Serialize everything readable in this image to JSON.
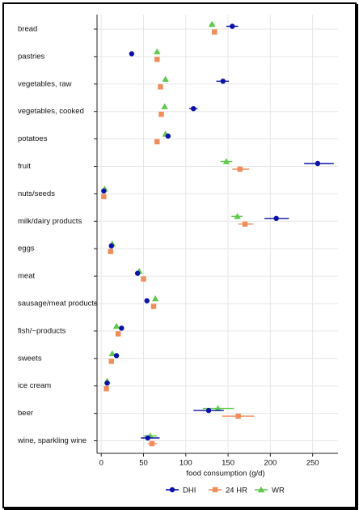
{
  "chart_data": {
    "type": "scatter",
    "orientation": "horizontal",
    "xlabel": "food consumption (g/d)",
    "xlim": [
      -5,
      280
    ],
    "xticks": [
      0,
      50,
      100,
      150,
      200,
      250
    ],
    "grid": true,
    "legend": "bottom",
    "categories": [
      "bread",
      "pastries",
      "vegetables, raw",
      "vegetables, cooked",
      "potatoes",
      "fruit",
      "nuts/seeds",
      "milk/dairy products",
      "eggs",
      "meat",
      "sausage/meat products",
      "fish/~products",
      "sweets",
      "ice cream",
      "beer",
      "wine, sparkling wine"
    ],
    "series": [
      {
        "name": "DHI",
        "color": "#0b12a8",
        "marker": "circle",
        "values": [
          155,
          36,
          144,
          109,
          79,
          256,
          3,
          207,
          12,
          43,
          54,
          24,
          18,
          7,
          127,
          55
        ],
        "ci_low": [
          148,
          36,
          136,
          104,
          79,
          240,
          3,
          193,
          12,
          43,
          52,
          24,
          17,
          7,
          109,
          47
        ],
        "ci_high": [
          162,
          36,
          151,
          114,
          79,
          275,
          3,
          222,
          12,
          43,
          57,
          24,
          19,
          7,
          145,
          69
        ]
      },
      {
        "name": "24 HR",
        "color": "#f28c58",
        "marker": "square",
        "values": [
          134,
          66,
          70,
          71,
          66,
          164,
          3,
          170,
          11,
          50,
          62,
          20,
          12,
          6,
          162,
          60
        ],
        "ci_low": [
          131,
          66,
          70,
          71,
          66,
          155,
          3,
          162,
          11,
          50,
          62,
          20,
          12,
          6,
          143,
          55
        ],
        "ci_high": [
          137,
          66,
          70,
          71,
          66,
          175,
          3,
          180,
          11,
          50,
          62,
          20,
          12,
          6,
          181,
          66
        ]
      },
      {
        "name": "WR",
        "color": "#5ec94a",
        "marker": "triangle",
        "values": [
          131,
          66,
          76,
          75,
          76,
          148,
          4,
          161,
          13,
          45,
          64,
          18,
          13,
          7,
          138,
          58
        ],
        "ci_low": [
          128,
          66,
          76,
          75,
          76,
          141,
          4,
          154,
          13,
          45,
          64,
          18,
          13,
          7,
          120,
          50
        ],
        "ci_high": [
          134,
          66,
          76,
          75,
          76,
          155,
          4,
          167,
          13,
          45,
          64,
          18,
          13,
          7,
          157,
          66
        ]
      }
    ]
  }
}
